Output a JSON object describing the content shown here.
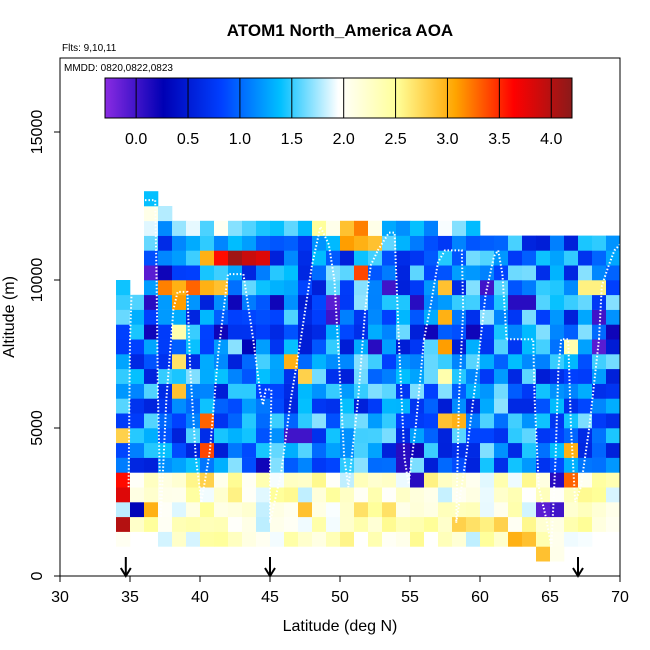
{
  "chart_data": {
    "type": "heatmap",
    "title": "ATOM1 North_America AOA",
    "annotations": [
      "Flts: 9,10,11",
      "MMDD: 0820,0822,0823"
    ],
    "xlabel": "Latitude (deg N)",
    "ylabel": "Altitude (m)",
    "xlim": [
      30,
      70
    ],
    "ylim": [
      0,
      17500
    ],
    "x_ticks": [
      30,
      35,
      40,
      45,
      50,
      55,
      60,
      65,
      70
    ],
    "y_ticks": [
      0,
      5000,
      10000,
      15000
    ],
    "colorbar": {
      "range": [
        -0.3,
        4.2
      ],
      "ticks": [
        0.0,
        0.5,
        1.0,
        1.5,
        2.0,
        2.5,
        3.0,
        3.5,
        4.0
      ],
      "tick_labels": [
        "0.0",
        "0.5",
        "1.0",
        "1.5",
        "2.0",
        "2.5",
        "3.0",
        "3.5",
        "4.0"
      ],
      "colors": [
        "#8a2be2",
        "#0000b4",
        "#0040ff",
        "#00bfff",
        "#ffffff",
        "#ffff99",
        "#ffa500",
        "#ff0000",
        "#8b1a1a"
      ]
    },
    "grid_cell": {
      "lat_step": 1.0,
      "alt_step": 500
    },
    "column_extents": [
      [
        34,
        1000,
        10000
      ],
      [
        35,
        1500,
        9500
      ],
      [
        36,
        1500,
        13000
      ],
      [
        37,
        1000,
        12500
      ],
      [
        38,
        1000,
        12000
      ],
      [
        39,
        1000,
        12000
      ],
      [
        40,
        1000,
        12000
      ],
      [
        41,
        1000,
        12000
      ],
      [
        42,
        1000,
        12000
      ],
      [
        43,
        1000,
        12000
      ],
      [
        44,
        1000,
        12000
      ],
      [
        45,
        1000,
        12000
      ],
      [
        46,
        1000,
        12000
      ],
      [
        47,
        1000,
        12000
      ],
      [
        48,
        1000,
        12000
      ],
      [
        49,
        1000,
        12000
      ],
      [
        50,
        1000,
        12000
      ],
      [
        51,
        1000,
        12000
      ],
      [
        52,
        1000,
        12000
      ],
      [
        53,
        1000,
        12000
      ],
      [
        54,
        1000,
        12000
      ],
      [
        55,
        1000,
        12000
      ],
      [
        56,
        1000,
        12000
      ],
      [
        57,
        1000,
        12000
      ],
      [
        58,
        1000,
        12000
      ],
      [
        59,
        1000,
        12000
      ],
      [
        60,
        1000,
        11500
      ],
      [
        61,
        1000,
        11500
      ],
      [
        62,
        1000,
        11500
      ],
      [
        63,
        1000,
        11500
      ],
      [
        64,
        500,
        11500
      ],
      [
        65,
        500,
        11500
      ],
      [
        66,
        1000,
        11500
      ],
      [
        67,
        1000,
        11500
      ],
      [
        68,
        1500,
        11500
      ],
      [
        69,
        1500,
        11500
      ]
    ],
    "highlight_cells": [
      [
        34,
        1500,
        4.0
      ],
      [
        34,
        2500,
        3.8
      ],
      [
        34,
        3000,
        3.6
      ],
      [
        34,
        4500,
        2.8
      ],
      [
        35,
        2000,
        0.3
      ],
      [
        36,
        2000,
        3.0
      ],
      [
        36,
        8000,
        0.2
      ],
      [
        36,
        9000,
        0.1
      ],
      [
        36,
        10000,
        -0.1
      ],
      [
        37,
        9500,
        3.2
      ],
      [
        37,
        10000,
        0.2
      ],
      [
        38,
        6000,
        2.9
      ],
      [
        38,
        7000,
        2.7
      ],
      [
        38,
        8000,
        2.4
      ],
      [
        38,
        9000,
        3.1
      ],
      [
        38,
        9500,
        3.0
      ],
      [
        39,
        9500,
        3.3
      ],
      [
        39,
        9000,
        1.2
      ],
      [
        40,
        3000,
        2.8
      ],
      [
        40,
        4000,
        3.4
      ],
      [
        40,
        5000,
        3.3
      ],
      [
        40,
        10500,
        3.0
      ],
      [
        41,
        10500,
        3.6
      ],
      [
        42,
        10500,
        4.1
      ],
      [
        43,
        10500,
        3.9
      ],
      [
        44,
        10500,
        3.8
      ],
      [
        40,
        9500,
        3.0
      ],
      [
        41,
        9500,
        2.9
      ],
      [
        45,
        2500,
        2.5
      ],
      [
        46,
        7000,
        3.0
      ],
      [
        47,
        6500,
        2.8
      ],
      [
        47,
        2000,
        2.9
      ],
      [
        48,
        11500,
        2.5
      ],
      [
        49,
        9000,
        -0.1
      ],
      [
        49,
        8500,
        0.0
      ],
      [
        50,
        11500,
        2.9
      ],
      [
        50,
        11000,
        3.1
      ],
      [
        51,
        11500,
        3.2
      ],
      [
        51,
        11000,
        3.0
      ],
      [
        51,
        10000,
        3.4
      ],
      [
        52,
        11000,
        2.9
      ],
      [
        51,
        2000,
        2.7
      ],
      [
        52,
        2000,
        2.5
      ],
      [
        53,
        2000,
        2.7
      ],
      [
        54,
        4000,
        0.1
      ],
      [
        54,
        3500,
        0.1
      ],
      [
        55,
        4000,
        0.2
      ],
      [
        55,
        3000,
        0.1
      ],
      [
        57,
        9500,
        2.9
      ],
      [
        57,
        8500,
        3.0
      ],
      [
        57,
        7500,
        3.1
      ],
      [
        57,
        6500,
        2.4
      ],
      [
        57,
        5000,
        2.9
      ],
      [
        58,
        5000,
        3.0
      ],
      [
        58,
        1500,
        2.8
      ],
      [
        59,
        1500,
        2.7
      ],
      [
        60,
        1500,
        2.6
      ],
      [
        61,
        1500,
        2.8
      ],
      [
        62,
        1000,
        3.0
      ],
      [
        63,
        1000,
        2.9
      ],
      [
        64,
        500,
        2.9
      ],
      [
        64,
        2000,
        -0.1
      ],
      [
        65,
        2000,
        0.0
      ],
      [
        65,
        3000,
        0.1
      ],
      [
        66,
        3000,
        3.3
      ],
      [
        66,
        4000,
        3.0
      ],
      [
        66,
        7500,
        2.4
      ],
      [
        67,
        9500,
        2.6
      ],
      [
        68,
        9500,
        2.6
      ],
      [
        68,
        7500,
        -0.1
      ],
      [
        68,
        8500,
        0.0
      ],
      [
        69,
        8000,
        0.2
      ],
      [
        62,
        9000,
        0.1
      ],
      [
        63,
        9000,
        0.1
      ],
      [
        60,
        9500,
        0.0
      ],
      [
        59,
        8000,
        0.2
      ],
      [
        55,
        9000,
        0.1
      ],
      [
        56,
        8000,
        0.2
      ],
      [
        53,
        9500,
        0.0
      ],
      [
        52,
        7500,
        0.1
      ],
      [
        46,
        4500,
        0.0
      ],
      [
        47,
        4500,
        0.0
      ],
      [
        44,
        3500,
        0.2
      ],
      [
        45,
        9000,
        0.2
      ],
      [
        42,
        9000,
        0.2
      ],
      [
        41,
        8000,
        0.2
      ],
      [
        43,
        7500,
        0.3
      ]
    ],
    "flight_tracks": [
      [
        [
          34.9,
          3000
        ],
        [
          35.0,
          8000
        ],
        [
          35.2,
          10800
        ],
        [
          35.6,
          12700
        ],
        [
          36.8,
          12700
        ],
        [
          36.9,
          10000
        ],
        [
          37.0,
          6000
        ],
        [
          37.2,
          2000
        ]
      ],
      [
        [
          37.2,
          2000
        ],
        [
          37.6,
          6000
        ],
        [
          38.1,
          9000
        ],
        [
          38.4,
          9600
        ],
        [
          39.1,
          9600
        ],
        [
          39.3,
          7000
        ],
        [
          39.7,
          4000
        ],
        [
          40.1,
          2500
        ]
      ],
      [
        [
          40.1,
          2500
        ],
        [
          40.7,
          4200
        ],
        [
          41.3,
          7500
        ],
        [
          42.0,
          10200
        ],
        [
          43.1,
          10200
        ],
        [
          43.8,
          8000
        ],
        [
          44.3,
          6200
        ],
        [
          44.5,
          5800
        ]
      ],
      [
        [
          44.5,
          5800
        ],
        [
          44.7,
          6300
        ],
        [
          45.1,
          6300
        ],
        [
          45.0,
          3500
        ],
        [
          45.0,
          1800
        ]
      ],
      [
        [
          45.0,
          1800
        ],
        [
          45.8,
          3500
        ],
        [
          46.5,
          6000
        ],
        [
          47.2,
          8000
        ],
        [
          48.0,
          10500
        ],
        [
          48.6,
          11800
        ],
        [
          49.2,
          11200
        ],
        [
          49.6,
          10000
        ]
      ],
      [
        [
          49.6,
          10000
        ],
        [
          49.9,
          7500
        ],
        [
          50.3,
          4000
        ],
        [
          50.6,
          3000
        ],
        [
          51.3,
          6000
        ],
        [
          51.8,
          9000
        ],
        [
          52.2,
          10500
        ],
        [
          52.7,
          11000
        ]
      ],
      [
        [
          52.7,
          11000
        ],
        [
          53.5,
          11600
        ],
        [
          53.9,
          11600
        ],
        [
          54.2,
          8000
        ],
        [
          54.6,
          4000
        ],
        [
          54.9,
          3100
        ],
        [
          55.4,
          5000
        ],
        [
          56.0,
          8000
        ]
      ],
      [
        [
          56.0,
          8000
        ],
        [
          56.5,
          9200
        ],
        [
          57.0,
          10600
        ],
        [
          57.5,
          11000
        ],
        [
          58.7,
          11000
        ],
        [
          58.8,
          9000
        ],
        [
          58.5,
          6000
        ],
        [
          58.3,
          1800
        ]
      ],
      [
        [
          58.3,
          1800
        ],
        [
          59.0,
          4000
        ],
        [
          59.8,
          7000
        ],
        [
          60.4,
          9500
        ],
        [
          61.0,
          10800
        ],
        [
          61.3,
          11000
        ],
        [
          61.6,
          10200
        ],
        [
          61.9,
          8000
        ]
      ],
      [
        [
          61.9,
          8000
        ],
        [
          63.8,
          8000
        ],
        [
          63.9,
          6000
        ],
        [
          64.2,
          3000
        ],
        [
          64.7,
          2000
        ],
        [
          65.1,
          1000
        ],
        [
          65.4,
          4000
        ],
        [
          65.6,
          7000
        ]
      ],
      [
        [
          65.6,
          7000
        ],
        [
          65.8,
          8000
        ],
        [
          66.3,
          8000
        ],
        [
          66.5,
          5000
        ],
        [
          66.8,
          2500
        ],
        [
          67.2,
          3000
        ],
        [
          67.8,
          5000
        ],
        [
          68.5,
          8000
        ]
      ],
      [
        [
          68.5,
          8000
        ],
        [
          68.7,
          9800
        ],
        [
          69.2,
          10500
        ],
        [
          69.6,
          11000
        ],
        [
          70.0,
          11200
        ]
      ]
    ],
    "flight_markers": [
      34.7,
      45.0,
      67.0
    ]
  }
}
